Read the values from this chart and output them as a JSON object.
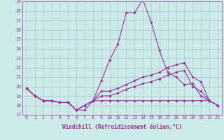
{
  "xlabel": "Windchill (Refroidissement éolien,°C)",
  "x_hours": [
    0,
    1,
    2,
    3,
    4,
    5,
    6,
    7,
    8,
    9,
    10,
    11,
    12,
    13,
    14,
    15,
    16,
    17,
    18,
    19,
    20,
    21,
    22,
    23
  ],
  "series": [
    [
      19.8,
      19.0,
      18.5,
      18.5,
      18.3,
      18.3,
      17.5,
      17.5,
      18.5,
      20.6,
      22.8,
      24.5,
      27.8,
      27.8,
      29.2,
      26.8,
      23.8,
      21.5,
      21.0,
      20.2,
      20.3,
      19.0,
      18.5,
      18.0
    ],
    [
      19.8,
      19.0,
      18.5,
      18.5,
      18.3,
      18.3,
      17.5,
      18.0,
      18.5,
      19.5,
      19.5,
      19.8,
      20.2,
      20.6,
      21.0,
      21.2,
      21.5,
      22.0,
      22.3,
      22.5,
      21.0,
      20.5,
      18.5,
      18.0
    ],
    [
      19.8,
      19.0,
      18.5,
      18.5,
      18.3,
      18.3,
      17.5,
      18.0,
      18.5,
      19.0,
      19.0,
      19.3,
      19.7,
      20.0,
      20.3,
      20.5,
      20.8,
      21.2,
      21.5,
      21.7,
      20.0,
      19.5,
      18.5,
      18.0
    ],
    [
      19.8,
      19.0,
      18.5,
      18.5,
      18.3,
      18.3,
      17.5,
      18.0,
      18.5,
      18.5,
      18.5,
      18.5,
      18.5,
      18.5,
      18.5,
      18.5,
      18.5,
      18.5,
      18.5,
      18.5,
      18.5,
      18.5,
      18.5,
      18.0
    ]
  ],
  "line_color": "#993399",
  "marker": "D",
  "markersize": 1.8,
  "ylim": [
    17,
    29
  ],
  "yticks": [
    17,
    18,
    19,
    20,
    21,
    22,
    23,
    24,
    25,
    26,
    27,
    28,
    29
  ],
  "xticks": [
    0,
    1,
    2,
    3,
    4,
    5,
    6,
    7,
    8,
    9,
    10,
    11,
    12,
    13,
    14,
    15,
    16,
    17,
    18,
    19,
    20,
    21,
    22,
    23
  ],
  "bg_color": "#cceae8",
  "grid_color": "#aabbcc",
  "linewidth": 0.8,
  "tick_fontsize": 4.8,
  "xlabel_fontsize": 5.5
}
